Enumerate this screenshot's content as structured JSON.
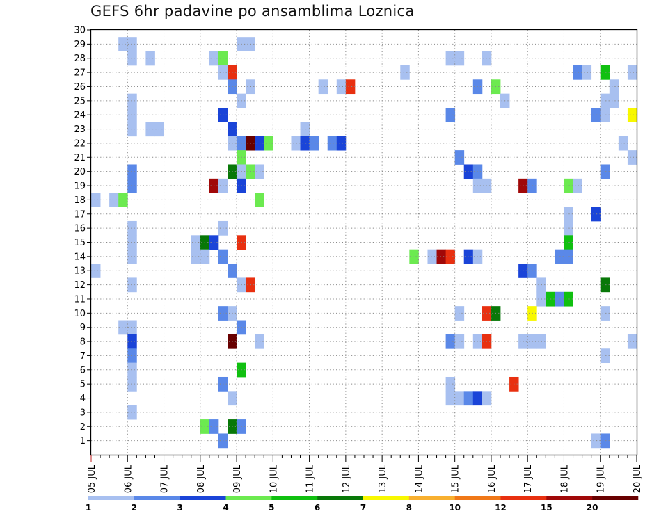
{
  "chart_data": {
    "type": "heatmap",
    "title": "GEFS 6hr padavine po ansamblima Loznica",
    "xlabel": "",
    "ylabel": "",
    "x_tick_labels": [
      "05 JUL",
      "06 JUL",
      "07 JUL",
      "08 JUL",
      "09 JUL",
      "10 JUL",
      "11 JUL",
      "12 JUL",
      "13 JUL",
      "14 JUL",
      "15 JUL",
      "16 JUL",
      "17 JUL",
      "18 JUL",
      "19 JUL",
      "20 JUL"
    ],
    "x_unit": "6-hour step from 05 JUL 00Z",
    "xlim": [
      0,
      60
    ],
    "y_tick_labels": [
      "1",
      "2",
      "3",
      "4",
      "5",
      "6",
      "7",
      "8",
      "9",
      "10",
      "11",
      "12",
      "13",
      "14",
      "15",
      "16",
      "17",
      "18",
      "19",
      "20",
      "21",
      "22",
      "23",
      "24",
      "25",
      "26",
      "27",
      "28",
      "29",
      "30"
    ],
    "ylabel_meaning": "ensemble member",
    "ylim": [
      0,
      30
    ],
    "grid": true,
    "colorbar": {
      "labels": [
        "1",
        "2",
        "3",
        "4",
        "5",
        "6",
        "7",
        "8",
        "10",
        "12",
        "15",
        "20"
      ],
      "colors": [
        "#a8c0f0",
        "#5a88e8",
        "#1a44d8",
        "#6cea50",
        "#10c010",
        "#087808",
        "#f8f800",
        "#f8b030",
        "#f07818",
        "#e83010",
        "#a00808",
        "#680000"
      ]
    },
    "cells": [
      [
        3,
        29,
        0
      ],
      [
        4,
        29,
        0
      ],
      [
        16,
        29,
        0
      ],
      [
        17,
        29,
        0
      ],
      [
        4,
        28,
        0
      ],
      [
        6,
        28,
        0
      ],
      [
        13,
        28,
        0
      ],
      [
        14,
        28,
        3
      ],
      [
        39,
        28,
        0
      ],
      [
        40,
        28,
        0
      ],
      [
        43,
        28,
        0
      ],
      [
        14,
        27,
        0
      ],
      [
        15,
        27,
        9
      ],
      [
        34,
        27,
        0
      ],
      [
        53,
        27,
        1
      ],
      [
        54,
        27,
        0
      ],
      [
        56,
        27,
        4
      ],
      [
        59,
        27,
        0
      ],
      [
        15,
        26,
        1
      ],
      [
        17,
        26,
        0
      ],
      [
        25,
        26,
        0
      ],
      [
        27,
        26,
        0
      ],
      [
        28,
        26,
        9
      ],
      [
        42,
        26,
        1
      ],
      [
        44,
        26,
        3
      ],
      [
        57,
        26,
        0
      ],
      [
        4,
        25,
        0
      ],
      [
        16,
        25,
        0
      ],
      [
        45,
        25,
        0
      ],
      [
        56,
        25,
        0
      ],
      [
        57,
        25,
        0
      ],
      [
        4,
        24,
        0
      ],
      [
        14,
        24,
        2
      ],
      [
        39,
        24,
        1
      ],
      [
        55,
        24,
        1
      ],
      [
        56,
        24,
        0
      ],
      [
        59,
        24,
        6
      ],
      [
        4,
        23,
        0
      ],
      [
        6,
        23,
        0
      ],
      [
        7,
        23,
        0
      ],
      [
        15,
        23,
        2
      ],
      [
        23,
        23,
        0
      ],
      [
        15,
        22,
        0
      ],
      [
        16,
        22,
        1
      ],
      [
        17,
        22,
        11
      ],
      [
        18,
        22,
        2
      ],
      [
        19,
        22,
        3
      ],
      [
        22,
        22,
        0
      ],
      [
        23,
        22,
        2
      ],
      [
        24,
        22,
        1
      ],
      [
        26,
        22,
        1
      ],
      [
        27,
        22,
        2
      ],
      [
        58,
        22,
        0
      ],
      [
        16,
        21,
        3
      ],
      [
        40,
        21,
        1
      ],
      [
        59,
        21,
        0
      ],
      [
        4,
        20,
        1
      ],
      [
        15,
        20,
        5
      ],
      [
        16,
        20,
        0
      ],
      [
        17,
        20,
        3
      ],
      [
        18,
        20,
        0
      ],
      [
        41,
        20,
        2
      ],
      [
        42,
        20,
        1
      ],
      [
        56,
        20,
        1
      ],
      [
        4,
        19,
        1
      ],
      [
        13,
        19,
        10
      ],
      [
        14,
        19,
        0
      ],
      [
        16,
        19,
        2
      ],
      [
        42,
        19,
        0
      ],
      [
        43,
        19,
        0
      ],
      [
        47,
        19,
        10
      ],
      [
        48,
        19,
        1
      ],
      [
        52,
        19,
        3
      ],
      [
        53,
        19,
        0
      ],
      [
        0,
        18,
        0
      ],
      [
        2,
        18,
        0
      ],
      [
        3,
        18,
        3
      ],
      [
        18,
        18,
        3
      ],
      [
        52,
        17,
        0
      ],
      [
        55,
        17,
        2
      ],
      [
        4,
        16,
        0
      ],
      [
        14,
        16,
        0
      ],
      [
        52,
        16,
        0
      ],
      [
        4,
        15,
        0
      ],
      [
        11,
        15,
        0
      ],
      [
        12,
        15,
        5
      ],
      [
        13,
        15,
        2
      ],
      [
        16,
        15,
        9
      ],
      [
        52,
        15,
        4
      ],
      [
        4,
        14,
        0
      ],
      [
        11,
        14,
        0
      ],
      [
        12,
        14,
        0
      ],
      [
        14,
        14,
        1
      ],
      [
        35,
        14,
        3
      ],
      [
        37,
        14,
        0
      ],
      [
        38,
        14,
        10
      ],
      [
        39,
        14,
        9
      ],
      [
        41,
        14,
        2
      ],
      [
        42,
        14,
        0
      ],
      [
        51,
        14,
        1
      ],
      [
        52,
        14,
        1
      ],
      [
        0,
        13,
        0
      ],
      [
        15,
        13,
        1
      ],
      [
        47,
        13,
        2
      ],
      [
        48,
        13,
        1
      ],
      [
        4,
        12,
        0
      ],
      [
        16,
        12,
        0
      ],
      [
        17,
        12,
        9
      ],
      [
        49,
        12,
        0
      ],
      [
        56,
        12,
        5
      ],
      [
        49,
        11,
        0
      ],
      [
        50,
        11,
        4
      ],
      [
        51,
        11,
        1
      ],
      [
        52,
        11,
        4
      ],
      [
        14,
        10,
        1
      ],
      [
        15,
        10,
        0
      ],
      [
        40,
        10,
        0
      ],
      [
        43,
        10,
        9
      ],
      [
        44,
        10,
        5
      ],
      [
        48,
        10,
        6
      ],
      [
        56,
        10,
        0
      ],
      [
        3,
        9,
        0
      ],
      [
        4,
        9,
        0
      ],
      [
        16,
        9,
        1
      ],
      [
        4,
        8,
        2
      ],
      [
        15,
        8,
        11
      ],
      [
        18,
        8,
        0
      ],
      [
        39,
        8,
        1
      ],
      [
        40,
        8,
        0
      ],
      [
        42,
        8,
        0
      ],
      [
        43,
        8,
        9
      ],
      [
        47,
        8,
        0
      ],
      [
        48,
        8,
        0
      ],
      [
        49,
        8,
        0
      ],
      [
        59,
        8,
        0
      ],
      [
        4,
        7,
        1
      ],
      [
        56,
        7,
        0
      ],
      [
        4,
        6,
        0
      ],
      [
        16,
        6,
        4
      ],
      [
        4,
        5,
        0
      ],
      [
        14,
        5,
        1
      ],
      [
        39,
        5,
        0
      ],
      [
        46,
        5,
        9
      ],
      [
        15,
        4,
        0
      ],
      [
        39,
        4,
        0
      ],
      [
        40,
        4,
        0
      ],
      [
        41,
        4,
        1
      ],
      [
        42,
        4,
        2
      ],
      [
        43,
        4,
        0
      ],
      [
        4,
        3,
        0
      ],
      [
        12,
        2,
        3
      ],
      [
        13,
        2,
        1
      ],
      [
        15,
        2,
        5
      ],
      [
        16,
        2,
        1
      ],
      [
        14,
        1,
        1
      ],
      [
        55,
        1,
        0
      ],
      [
        56,
        1,
        1
      ]
    ]
  }
}
